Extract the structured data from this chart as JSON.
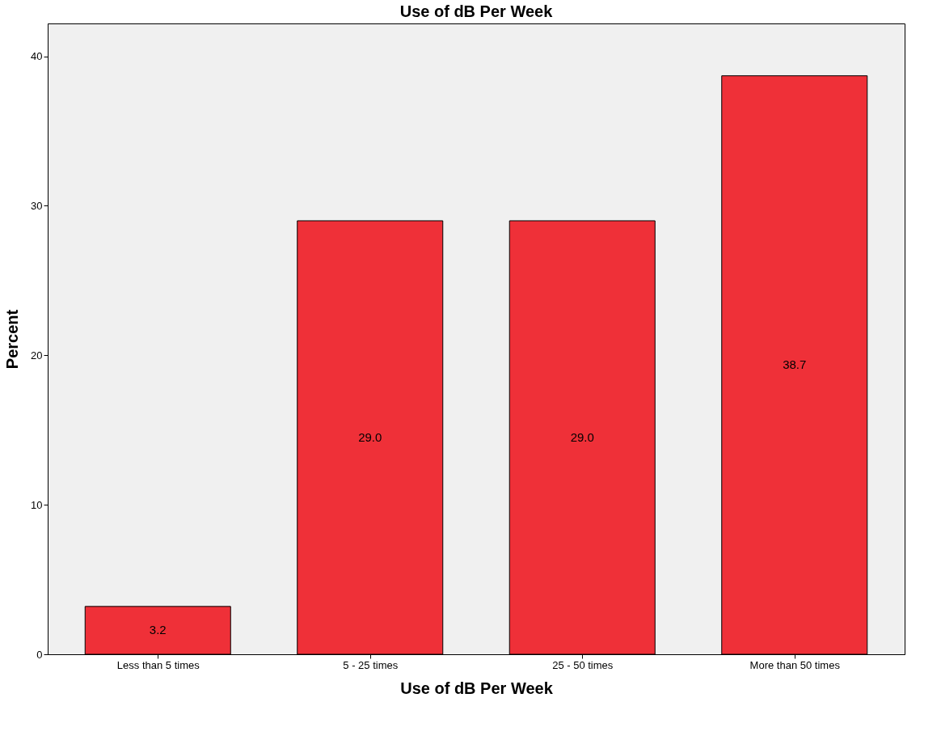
{
  "chart_data": {
    "type": "bar",
    "title": "Use of dB Per Week",
    "xlabel": "Use of dB Per Week",
    "ylabel": "Percent",
    "categories": [
      "Less than 5 times",
      "5 - 25 times",
      "25 - 50 times",
      "More than 50 times"
    ],
    "values": [
      3.2,
      29.0,
      29.0,
      38.7
    ],
    "value_labels": [
      "3.2",
      "29.0",
      "29.0",
      "38.7"
    ],
    "color": "#ef3038",
    "ylim": [
      0,
      42.2
    ],
    "yticks": [
      0,
      10,
      20,
      30,
      40
    ],
    "grid": false
  }
}
